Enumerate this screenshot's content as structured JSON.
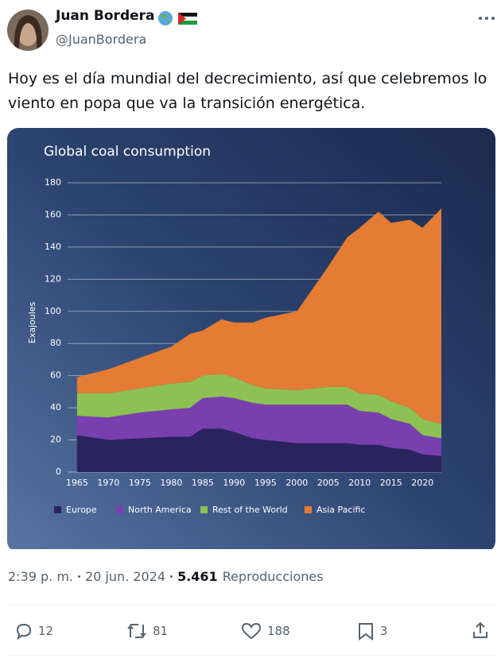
{
  "user": {
    "name": "Juan Bordera",
    "handle": "@JuanBordera"
  },
  "text": "Hoy es el día mundial del decrecimiento, así que celebremos lo viento en popa que va la transición energética.",
  "meta": {
    "time": "2:39 p. m.",
    "date": "20 jun. 2024",
    "views": "5.461",
    "views_label": "Reproducciones"
  },
  "actions": {
    "replies": 12,
    "reposts": 81,
    "likes": 188,
    "bookmarks": 3
  },
  "chart_data": {
    "type": "stacked-area",
    "title": "Global coal consumption",
    "ylabel": "Exajoules",
    "x": [
      1965,
      1970,
      1975,
      1980,
      1983,
      1985,
      1988,
      1990,
      1993,
      1995,
      2000,
      2005,
      2008,
      2010,
      2013,
      2015,
      2018,
      2020,
      2023
    ],
    "series": [
      {
        "name": "Europe",
        "color": "#29235e",
        "values": [
          23,
          20,
          21,
          22,
          22,
          27,
          27,
          25,
          21,
          20,
          18,
          18,
          18,
          17,
          17,
          15,
          14,
          11,
          10
        ]
      },
      {
        "name": "North America",
        "color": "#7a3fae",
        "values": [
          12,
          14,
          16,
          17,
          18,
          19,
          20,
          21,
          22,
          22,
          24,
          24,
          24,
          21,
          20,
          18,
          16,
          12,
          11
        ]
      },
      {
        "name": "Rest of the World",
        "color": "#8dc153",
        "values": [
          14,
          15,
          15,
          16,
          16,
          14,
          14,
          13,
          11,
          10,
          9,
          11,
          11,
          11,
          11,
          11,
          10,
          10,
          9
        ]
      },
      {
        "name": "Asia Pacific",
        "color": "#e47c34",
        "values": [
          10,
          15,
          19,
          23,
          30,
          28,
          34,
          34,
          39,
          44,
          49,
          75,
          93,
          103,
          114,
          111,
          117,
          119,
          134
        ]
      }
    ],
    "xlim": [
      1963.5,
      2023
    ],
    "ylim": [
      0,
      180
    ],
    "xticks": [
      1965,
      1970,
      1975,
      1980,
      1985,
      1990,
      1995,
      2000,
      2005,
      2010,
      2015,
      2020
    ],
    "yticks": [
      0,
      20,
      40,
      60,
      80,
      100,
      120,
      140,
      160,
      180
    ],
    "grid": true,
    "legend": "bottom"
  }
}
